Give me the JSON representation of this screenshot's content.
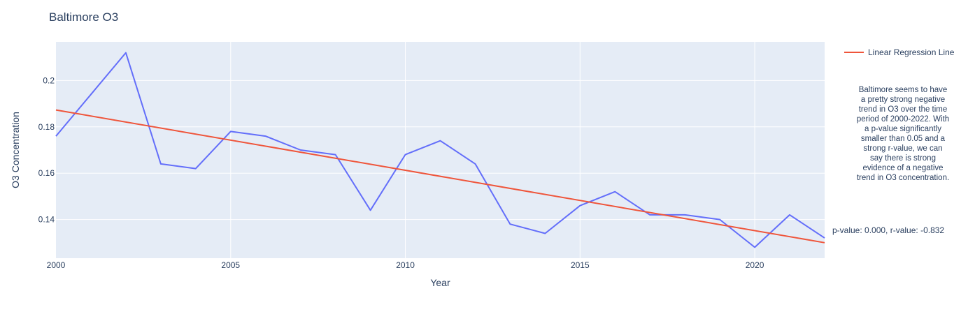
{
  "chart_data": {
    "type": "line",
    "title": "Baltimore O3",
    "xlabel": "Year",
    "ylabel": "O3 Concentration",
    "xlim": [
      2000,
      2022
    ],
    "ylim": [
      0.1233,
      0.2167
    ],
    "x_ticks": [
      2000,
      2005,
      2010,
      2015,
      2020
    ],
    "y_ticks": [
      0.14,
      0.16,
      0.18,
      0.2
    ],
    "y_tick_labels": [
      "0.14",
      "0.16",
      "0.18",
      "0.2"
    ],
    "grid": true,
    "legend_position": "top-right",
    "series": [
      {
        "kind": "observed",
        "color": "#636efa",
        "x": [
          2000,
          2001,
          2002,
          2003,
          2004,
          2005,
          2006,
          2007,
          2008,
          2009,
          2010,
          2011,
          2012,
          2013,
          2014,
          2015,
          2016,
          2017,
          2018,
          2019,
          2020,
          2021,
          2022
        ],
        "y": [
          0.176,
          0.194,
          0.212,
          0.164,
          0.162,
          0.178,
          0.176,
          0.17,
          0.168,
          0.144,
          0.168,
          0.174,
          0.164,
          0.138,
          0.134,
          0.146,
          0.152,
          0.142,
          0.142,
          0.14,
          0.128,
          0.142,
          0.132
        ]
      },
      {
        "kind": "regression",
        "name": "Linear Regression Line",
        "color": "#ef553b",
        "x": [
          2000,
          2022
        ],
        "y": [
          0.1873,
          0.13
        ]
      }
    ],
    "annotations": {
      "stats": "p-value: 0.000, r-value: -0.832",
      "note_lines": [
        "Baltimore seems to have",
        "a pretty strong negative",
        "trend in O3 over the time",
        "period of 2000-2022. With",
        "a p-value significantly",
        "smaller than 0.05 and a",
        "strong r-value, we can",
        "say there is strong",
        "evidence of a negative",
        "trend in O3 concentration."
      ]
    }
  },
  "colors": {
    "plot_background": "#e5ecf6",
    "grid": "#ffffff",
    "text": "#2a3f5f"
  }
}
